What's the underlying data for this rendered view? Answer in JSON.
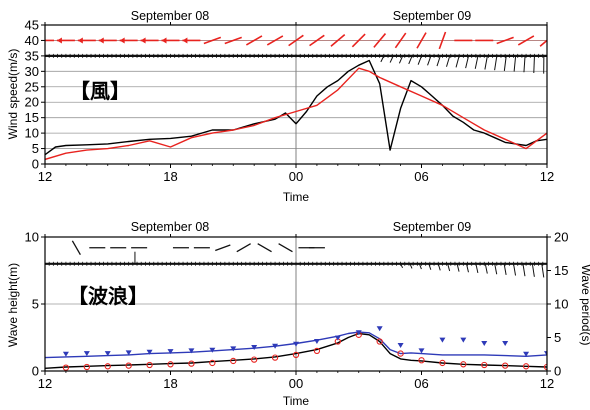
{
  "chart_data": [
    {
      "type": "line",
      "panel_label": "【風】",
      "date_labels": [
        "September 08",
        "September 09"
      ],
      "xlabel": "Time",
      "ylabel": "Wind speed(m/s)",
      "x_tick_labels": [
        "12",
        "18",
        "00",
        "06",
        "12"
      ],
      "x_hours": [
        0,
        6,
        12,
        18,
        24
      ],
      "xlim": [
        0,
        24
      ],
      "ylim": [
        0,
        45
      ],
      "y_ticks": [
        0,
        5,
        10,
        15,
        20,
        25,
        30,
        35,
        40,
        45
      ],
      "grid": true,
      "series": [
        {
          "color": "#000000",
          "x": [
            0,
            0.5,
            1,
            2,
            3,
            4,
            5,
            6,
            7,
            8,
            9,
            10,
            11,
            11.5,
            12,
            12.5,
            13,
            13.5,
            14,
            14.5,
            15,
            15.5,
            16,
            16.5,
            17,
            17.5,
            18,
            18.5,
            19,
            19.5,
            20,
            20.5,
            21,
            21.5,
            22,
            22.5,
            23,
            23.5,
            24
          ],
          "y": [
            3,
            5.5,
            6,
            6.2,
            6.5,
            7.3,
            8,
            8.3,
            9,
            11,
            11,
            13,
            14.5,
            16.5,
            13,
            17,
            22,
            25,
            27,
            30,
            32,
            33.5,
            26,
            4.5,
            18,
            27,
            25,
            22,
            19,
            15.5,
            13.5,
            11,
            10,
            8.5,
            7,
            6.5,
            6,
            7.5,
            8
          ]
        },
        {
          "color": "#e8231f",
          "x": [
            0,
            1,
            2,
            3,
            4,
            5,
            6,
            7,
            8,
            9,
            10,
            11,
            12,
            13,
            14,
            15,
            15.5,
            16,
            17,
            18,
            19,
            20,
            21,
            22,
            23,
            24
          ],
          "y": [
            1.5,
            3.5,
            4.5,
            5,
            6,
            7.5,
            5.5,
            8.5,
            10,
            11,
            12.5,
            15,
            17,
            19,
            24,
            31,
            30,
            28,
            25,
            22,
            19,
            15,
            11,
            8,
            5,
            10
          ]
        }
      ],
      "wind_arrow_row_y": 40,
      "baseline_y": 35
    },
    {
      "type": "line",
      "panel_label": "【波浪】",
      "date_labels": [
        "September 08",
        "September 09"
      ],
      "xlabel": "Time",
      "ylabel": "Wave height(m)",
      "y2label": "Wave period(s)",
      "x_tick_labels": [
        "12",
        "18",
        "00",
        "06",
        "12"
      ],
      "x_hours": [
        0,
        6,
        12,
        18,
        24
      ],
      "xlim": [
        0,
        24
      ],
      "ylim": [
        0,
        10
      ],
      "y_ticks": [
        0,
        5,
        10
      ],
      "y2lim": [
        0,
        20
      ],
      "y2_ticks": [
        0,
        5,
        10,
        15,
        20
      ],
      "grid": true,
      "series": [
        {
          "color": "#000000",
          "axis": "left",
          "x": [
            0,
            1,
            2,
            3,
            4,
            5,
            6,
            7,
            8,
            9,
            10,
            11,
            12,
            13,
            14,
            14.5,
            15,
            15.5,
            16,
            16.5,
            17,
            17.5,
            18,
            19,
            20,
            21,
            22,
            23,
            24
          ],
          "y": [
            0.2,
            0.3,
            0.35,
            0.4,
            0.45,
            0.5,
            0.55,
            0.6,
            0.7,
            0.8,
            0.9,
            1.05,
            1.3,
            1.6,
            2.1,
            2.5,
            2.8,
            2.7,
            2.2,
            1.3,
            0.9,
            0.8,
            0.75,
            0.6,
            0.5,
            0.45,
            0.4,
            0.35,
            0.3
          ]
        },
        {
          "color": "#2e3ab8",
          "axis": "left",
          "x": [
            0,
            1,
            2,
            3,
            4,
            5,
            6,
            7,
            8,
            9,
            10,
            11,
            12,
            13,
            14,
            14.5,
            15,
            15.5,
            16,
            16.5,
            17,
            17.5,
            18,
            19,
            20,
            21,
            22,
            23,
            24
          ],
          "y": [
            1.0,
            1.05,
            1.1,
            1.15,
            1.2,
            1.3,
            1.35,
            1.4,
            1.5,
            1.6,
            1.7,
            1.85,
            2.05,
            2.3,
            2.6,
            2.8,
            2.9,
            2.85,
            2.4,
            1.6,
            1.3,
            1.35,
            1.3,
            1.2,
            1.2,
            1.2,
            1.15,
            1.1,
            1.2
          ]
        }
      ],
      "markers": [
        {
          "color": "#e8231f",
          "shape": "open-circle",
          "axis": "left",
          "x": [
            1,
            2,
            3,
            4,
            5,
            6,
            7,
            8,
            9,
            10,
            11,
            12,
            13,
            14,
            15,
            16,
            17,
            18,
            19,
            20,
            21,
            22,
            23,
            24
          ],
          "y": [
            0.25,
            0.3,
            0.35,
            0.4,
            0.45,
            0.5,
            0.55,
            0.6,
            0.75,
            0.85,
            1.0,
            1.2,
            1.5,
            2.2,
            2.7,
            2.2,
            1.3,
            0.8,
            0.6,
            0.5,
            0.45,
            0.4,
            0.35,
            0.3
          ]
        },
        {
          "color": "#2e3ab8",
          "shape": "triangle-down",
          "axis": "right",
          "x": [
            1,
            2,
            3,
            4,
            5,
            6,
            7,
            8,
            9,
            10,
            11,
            12,
            13,
            14,
            15,
            16,
            17,
            18,
            19,
            20,
            21,
            22,
            23,
            24
          ],
          "y": [
            2.5,
            2.6,
            2.6,
            2.7,
            2.8,
            2.9,
            3.0,
            3.1,
            3.3,
            3.5,
            3.7,
            4.0,
            4.4,
            4.9,
            5.7,
            6.3,
            3.8,
            3.0,
            4.6,
            4.6,
            4.1,
            4.1,
            2.5,
            2.6
          ]
        }
      ],
      "wave_arrow_row_y": 9.2,
      "baseline_y": 8.0
    }
  ]
}
